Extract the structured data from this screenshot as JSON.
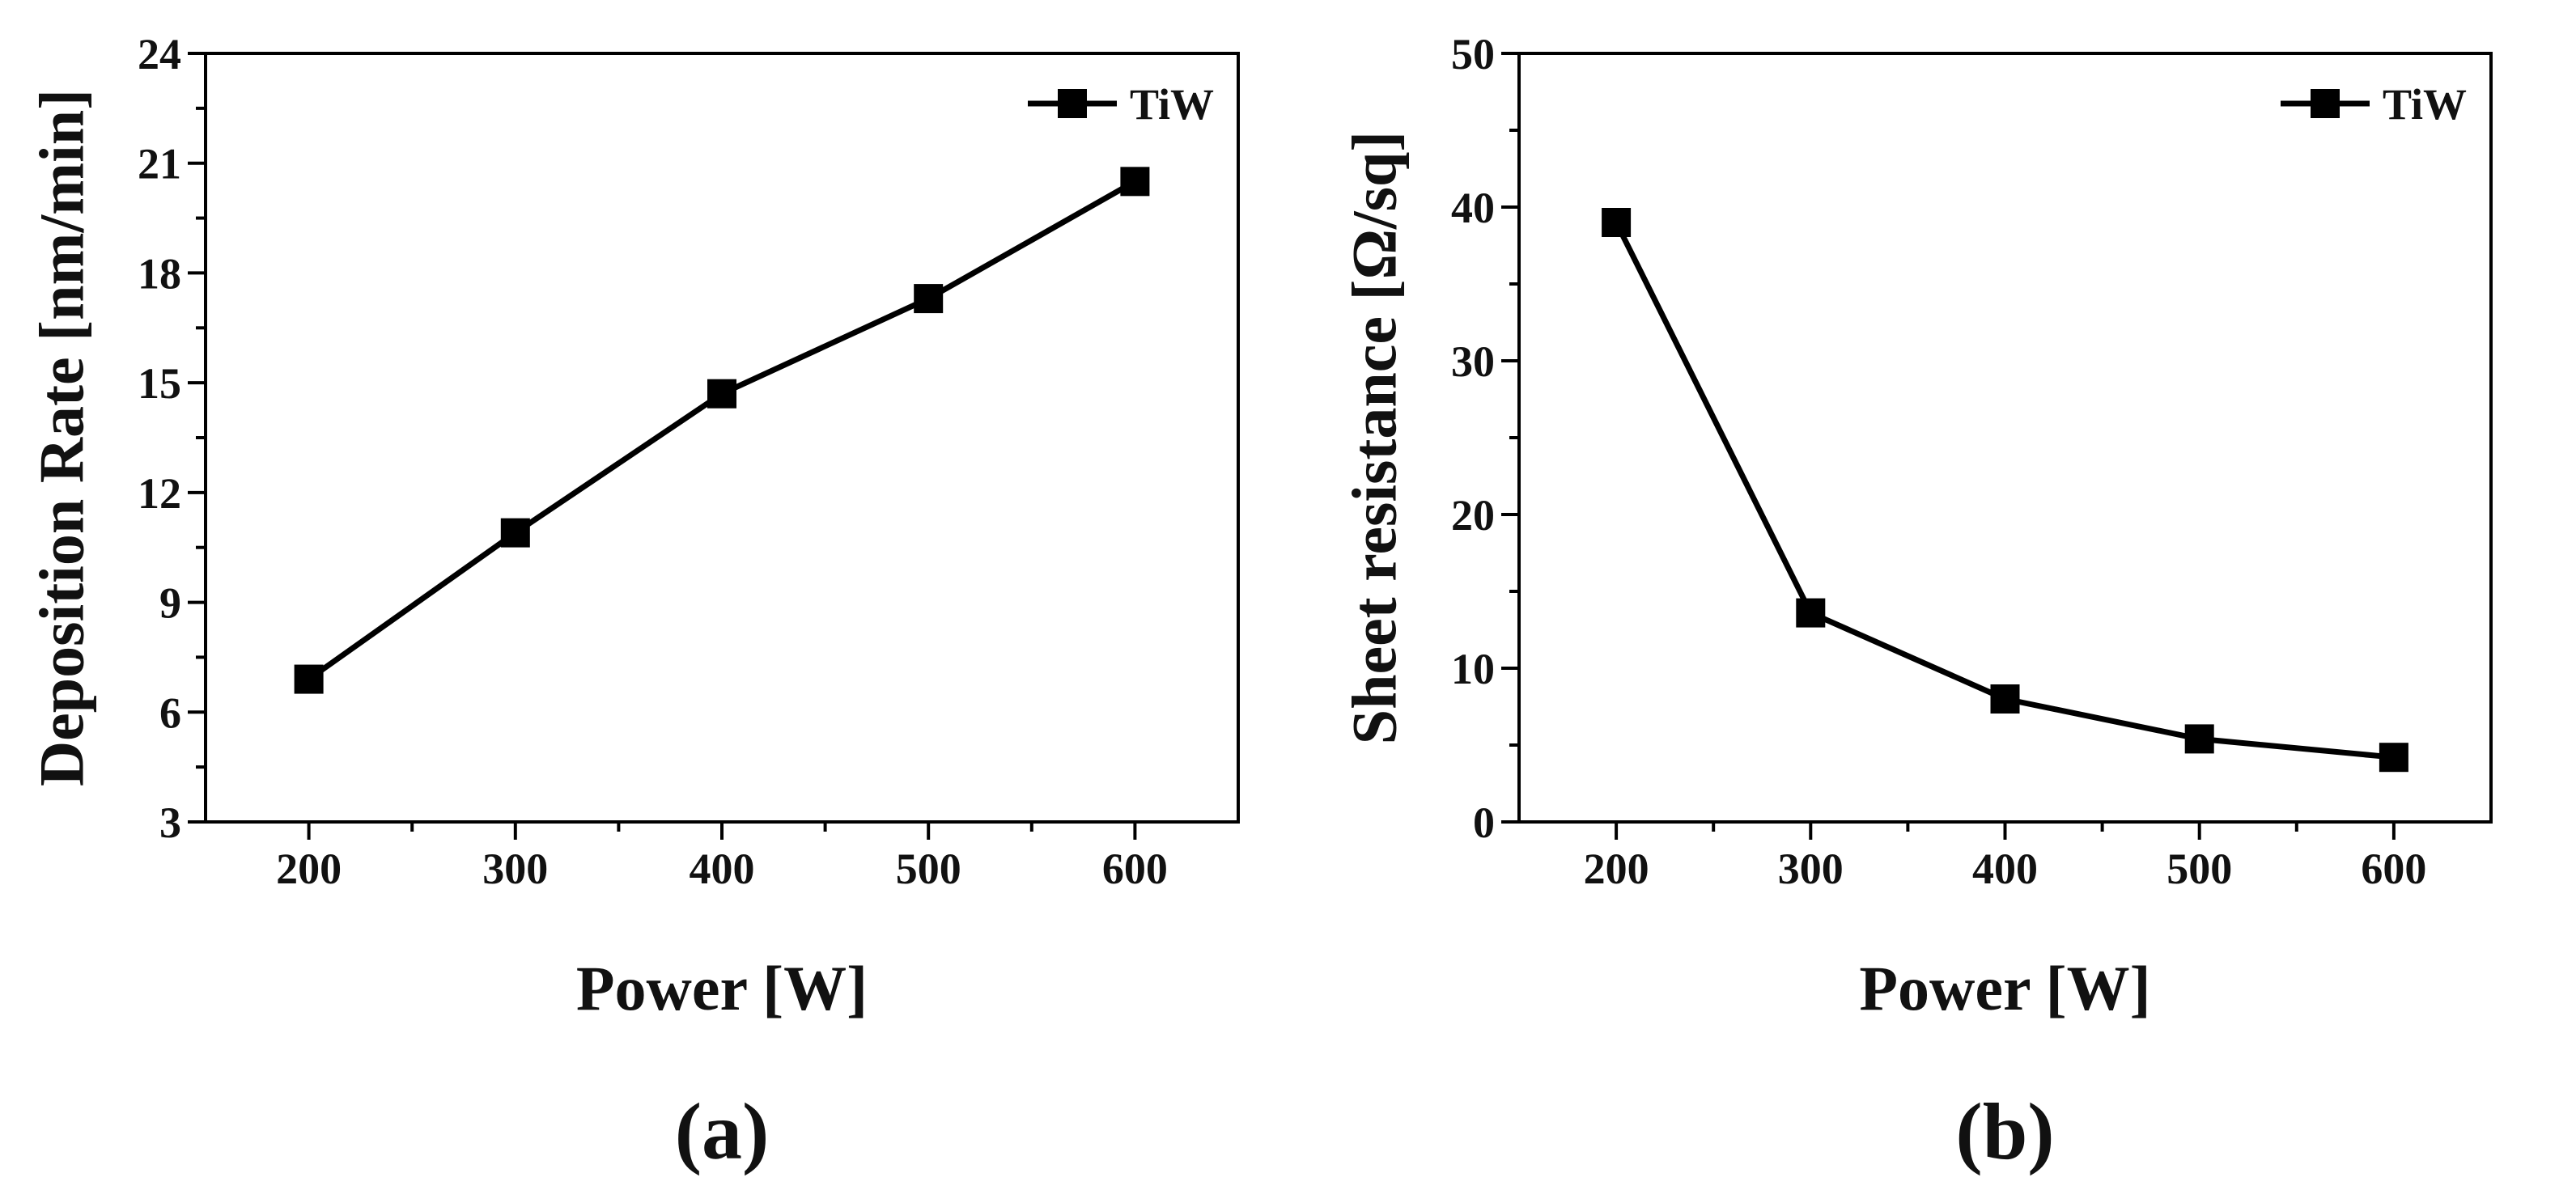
{
  "chart_data": [
    {
      "type": "line",
      "panel_label": "(a)",
      "title": "",
      "xlabel": "Power [W]",
      "ylabel": "Deposition Rate [nm/min]",
      "xlim": [
        150,
        650
      ],
      "ylim": [
        3,
        24
      ],
      "xticks": [
        200,
        300,
        400,
        500,
        600
      ],
      "yticks": [
        3,
        6,
        9,
        12,
        15,
        18,
        21,
        24
      ],
      "grid": false,
      "legend_position": "top-right",
      "series": [
        {
          "name": "TiW",
          "marker": "square",
          "color": "#000000",
          "x": [
            200,
            300,
            400,
            500,
            600
          ],
          "y": [
            6.9,
            10.9,
            14.7,
            17.3,
            20.5
          ]
        }
      ]
    },
    {
      "type": "line",
      "panel_label": "(b)",
      "title": "",
      "xlabel": "Power [W]",
      "ylabel": "Sheet resistance [Ω/sq]",
      "xlim": [
        150,
        650
      ],
      "ylim": [
        0,
        50
      ],
      "xticks": [
        200,
        300,
        400,
        500,
        600
      ],
      "yticks": [
        0,
        10,
        20,
        30,
        40,
        50
      ],
      "grid": false,
      "legend_position": "top-right",
      "series": [
        {
          "name": "TiW",
          "marker": "square",
          "color": "#000000",
          "x": [
            200,
            300,
            400,
            500,
            600
          ],
          "y": [
            39.0,
            13.6,
            8.0,
            5.4,
            4.2
          ]
        }
      ]
    }
  ]
}
